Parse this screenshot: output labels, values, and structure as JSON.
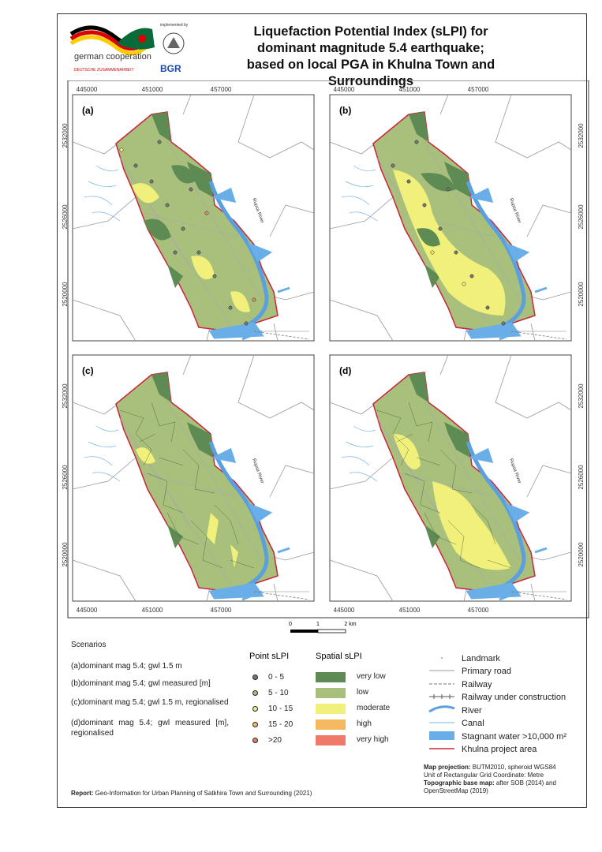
{
  "header": {
    "title": "Liquefaction Potential Index (sLPI) for dominant magnitude 5.4 earthquake; based on local PGA in Khulna Town and Surroundings",
    "logo_text": "german cooperation",
    "logo_subtext": "DEUTSCHE ZUSAMMENARBEIT",
    "implemented_by": "implemented by",
    "bgr": "BGR"
  },
  "panels": [
    "(a)",
    "(b)",
    "(c)",
    "(d)"
  ],
  "grid_x": [
    445000,
    451000,
    457000
  ],
  "grid_y": [
    2532000,
    2526000,
    2520000
  ],
  "river_label": "Rupsa River",
  "scale": [
    "0",
    "1",
    "2 km"
  ],
  "legend": {
    "scenarios_title": "Scenarios",
    "scenarios": [
      "(a)dominant mag 5.4; gwl 1.5 m",
      "(b)dominant mag 5.4; gwl measured [m]",
      "(c)dominant mag 5.4; gwl 1.5 m, regionalised",
      "(d)dominant mag 5.4; gwl measured [m], regionalised"
    ],
    "point_title": "Point sLPI",
    "point_classes": [
      "0 - 5",
      "5 - 10",
      "10 - 15",
      "15 - 20",
      ">20"
    ],
    "spatial_title": "Spatial sLPI",
    "spatial_classes": [
      "very low",
      "low",
      "moderate",
      "high",
      "very high"
    ],
    "map_items": [
      "Landmark",
      "Primary road",
      "Railway",
      "Railway under construction",
      "River",
      "Canal",
      "Stagnant water >10,000 m²",
      "Khulna project area"
    ]
  },
  "notes": {
    "projection": "Map projection: BUTM2010, spheroid WGS84",
    "unit": "Unit of Rectangular Grid Coordinate: Metre",
    "base_map": "Topographic base map: after SOB (2014) and OpenStreetMap (2019)",
    "report": "Report: Geo-Information for Urban Planning of Satkhira Town and Surrounding (2021)"
  }
}
